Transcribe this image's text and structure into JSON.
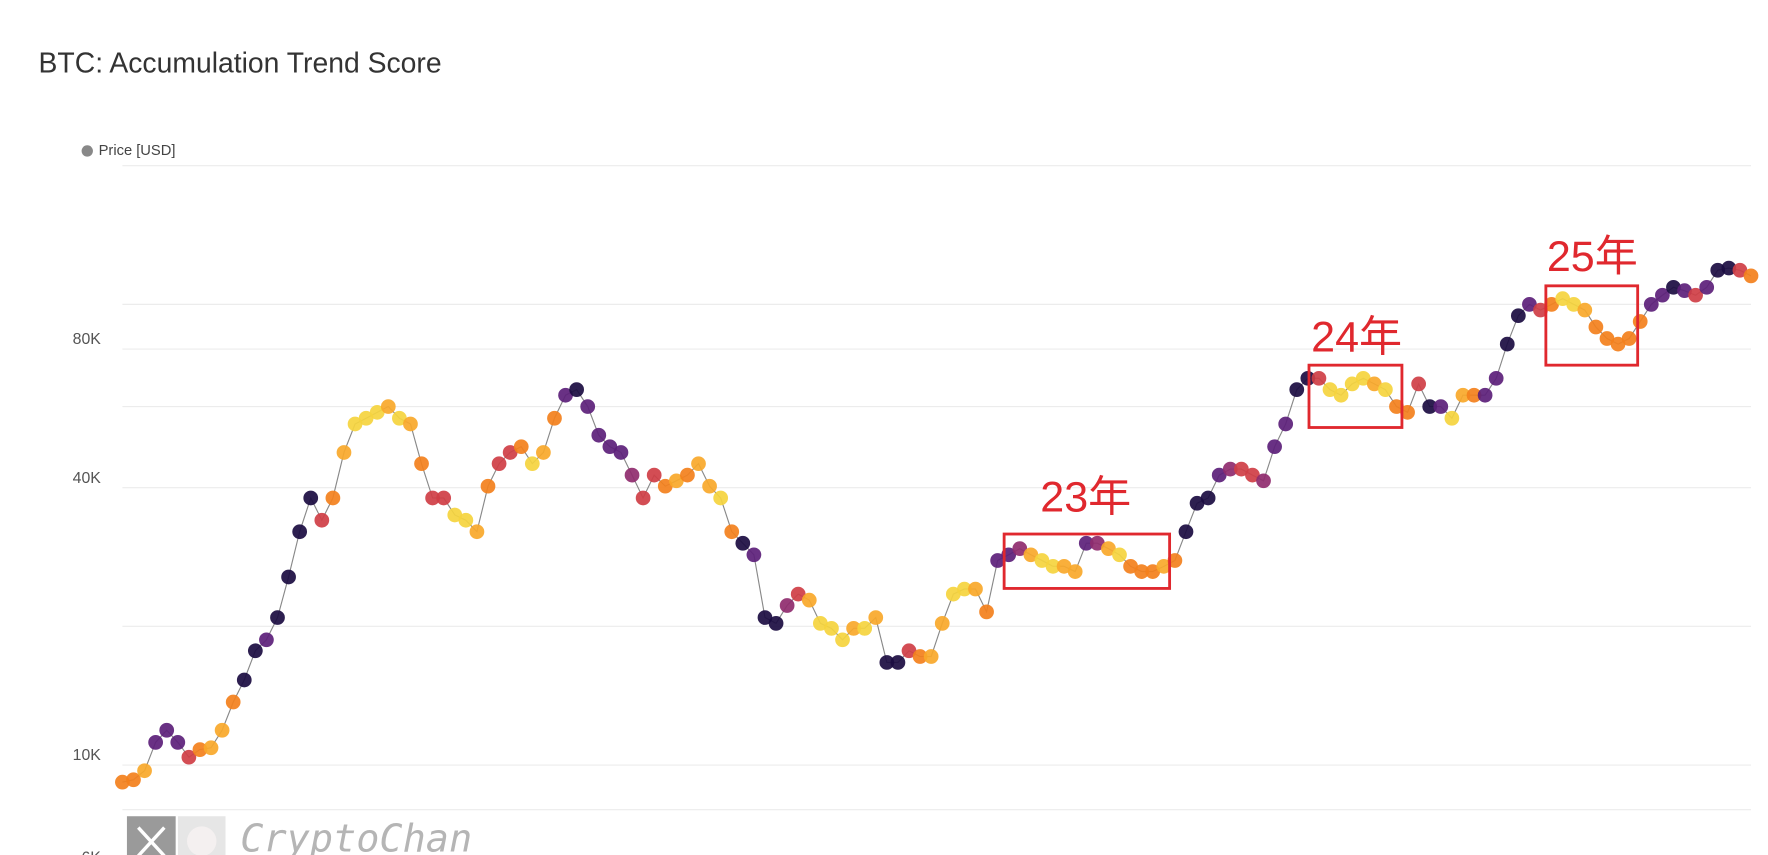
{
  "chart_data": {
    "type": "scatter",
    "title": "BTC: Accumulation Trend Score",
    "log_scale": true,
    "grid": true,
    "ylim": [
      6000,
      200000
    ],
    "yticks": [
      {
        "value": 6000,
        "label": "6K"
      },
      {
        "value": 10000,
        "label": "10K"
      },
      {
        "value": 40000,
        "label": "40K"
      },
      {
        "value": 80000,
        "label": "80K"
      }
    ],
    "minor_grid": [
      8000,
      20000,
      60000,
      100000,
      200000
    ],
    "legend": "top-left",
    "annotations": [
      "23年",
      "24年",
      "25年"
    ],
    "watermark": "CryptoChan",
    "series": [
      {
        "name": "Price [USD]",
        "color": "#888888",
        "values": [
          9180,
          9290,
          9720,
          11200,
          11900,
          11200,
          10400,
          10800,
          10900,
          11900,
          13700,
          15300,
          17700,
          18700,
          20900,
          25600,
          32100,
          38000,
          34000,
          38000,
          47700,
          55000,
          56600,
          58300,
          60000,
          56600,
          55000,
          45100,
          38000,
          38000,
          34900,
          34000,
          32100,
          40300,
          45100,
          47700,
          49100,
          45100,
          47700,
          56600,
          63500,
          65300,
          60000,
          52000,
          49100,
          47700,
          42600,
          38000,
          42600,
          40300,
          41400,
          42600,
          45100,
          40300,
          38000,
          32100,
          30300,
          28600,
          20900,
          20300,
          22200,
          23500,
          22800,
          20300,
          19800,
          18700,
          19800,
          19800,
          20900,
          16700,
          16700,
          17700,
          17200,
          17200,
          20300,
          23500,
          24100,
          24100,
          21500,
          27800,
          28600,
          29500,
          28600,
          27800,
          27000,
          27000,
          26300,
          30300,
          30300,
          29500,
          28600,
          27000,
          26300,
          26300,
          27000,
          27800,
          32100,
          37000,
          38000,
          42600,
          43900,
          43900,
          42600,
          41400,
          49100,
          55000,
          65300,
          69100,
          69100,
          65300,
          63500,
          67200,
          69100,
          67200,
          65300,
          60000,
          58300,
          67200,
          60000,
          60000,
          56600,
          63500,
          63500,
          63500,
          69100,
          82000,
          94500,
          100000,
          97200,
          100000,
          102900,
          100000,
          97200,
          89300,
          84300,
          82000,
          84300,
          91800,
          100000,
          104700,
          108900,
          107100,
          104700,
          108900,
          118600,
          119900,
          118600,
          115300
        ],
        "point_colors": [
          "#f3801c",
          "#f3801c",
          "#f9a82a",
          "#5c1f7a",
          "#5c1f7a",
          "#5c1f7a",
          "#cf3e45",
          "#f3801c",
          "#f9a82a",
          "#f9a82a",
          "#f3801c",
          "#1b0c41",
          "#1b0c41",
          "#5c1f7a",
          "#1b0c41",
          "#1b0c41",
          "#1b0c41",
          "#1b0c41",
          "#cf3e45",
          "#f3801c",
          "#f9a82a",
          "#f5d43e",
          "#f5d43e",
          "#f5d43e",
          "#f9a82a",
          "#f5d43e",
          "#f9a82a",
          "#f3801c",
          "#cf3e45",
          "#cf3e45",
          "#f5d43e",
          "#f5d43e",
          "#f9a82a",
          "#f3801c",
          "#cf3e45",
          "#cf3e45",
          "#f3801c",
          "#f5d43e",
          "#f9a82a",
          "#f3801c",
          "#5c1f7a",
          "#1b0c41",
          "#5c1f7a",
          "#5c1f7a",
          "#5c1f7a",
          "#5c1f7a",
          "#8f2b6e",
          "#cf3e45",
          "#cf3e45",
          "#f3801c",
          "#f9a82a",
          "#f3801c",
          "#f9a82a",
          "#f9a82a",
          "#f5d43e",
          "#f3801c",
          "#1b0c41",
          "#5c1f7a",
          "#1b0c41",
          "#1b0c41",
          "#8f2b6e",
          "#cf3e45",
          "#f9a82a",
          "#f5d43e",
          "#f5d43e",
          "#f5d43e",
          "#f9a82a",
          "#f5d43e",
          "#f9a82a",
          "#1b0c41",
          "#1b0c41",
          "#cf3e45",
          "#f3801c",
          "#f9a82a",
          "#f9a82a",
          "#f5d43e",
          "#f5d43e",
          "#f9a82a",
          "#f3801c",
          "#5c1f7a",
          "#5c1f7a",
          "#8f2b6e",
          "#f9a82a",
          "#f5d43e",
          "#f5d43e",
          "#f9a82a",
          "#f9a82a",
          "#5c1f7a",
          "#8f2b6e",
          "#f9a82a",
          "#f5d43e",
          "#f3801c",
          "#f3801c",
          "#f3801c",
          "#f9a82a",
          "#f3801c",
          "#1b0c41",
          "#1b0c41",
          "#1b0c41",
          "#5c1f7a",
          "#8f2b6e",
          "#cf3e45",
          "#cf3e45",
          "#8f2b6e",
          "#5c1f7a",
          "#5c1f7a",
          "#1b0c41",
          "#1b0c41",
          "#cf3e45",
          "#f5d43e",
          "#f5d43e",
          "#f5d43e",
          "#f5d43e",
          "#f9a82a",
          "#f5d43e",
          "#f3801c",
          "#f3801c",
          "#cf3e45",
          "#1b0c41",
          "#5c1f7a",
          "#f5d43e",
          "#f9a82a",
          "#f3801c",
          "#5c1f7a",
          "#5c1f7a",
          "#1b0c41",
          "#1b0c41",
          "#5c1f7a",
          "#cf3e45",
          "#f3801c",
          "#f5d43e",
          "#f5d43e",
          "#f9a82a",
          "#f3801c",
          "#f3801c",
          "#f3801c",
          "#f3801c",
          "#f3801c",
          "#5c1f7a",
          "#5c1f7a",
          "#1b0c41",
          "#5c1f7a",
          "#cf3e45",
          "#5c1f7a",
          "#1b0c41",
          "#1b0c41",
          "#cf3e45",
          "#f3801c"
        ]
      }
    ]
  }
}
